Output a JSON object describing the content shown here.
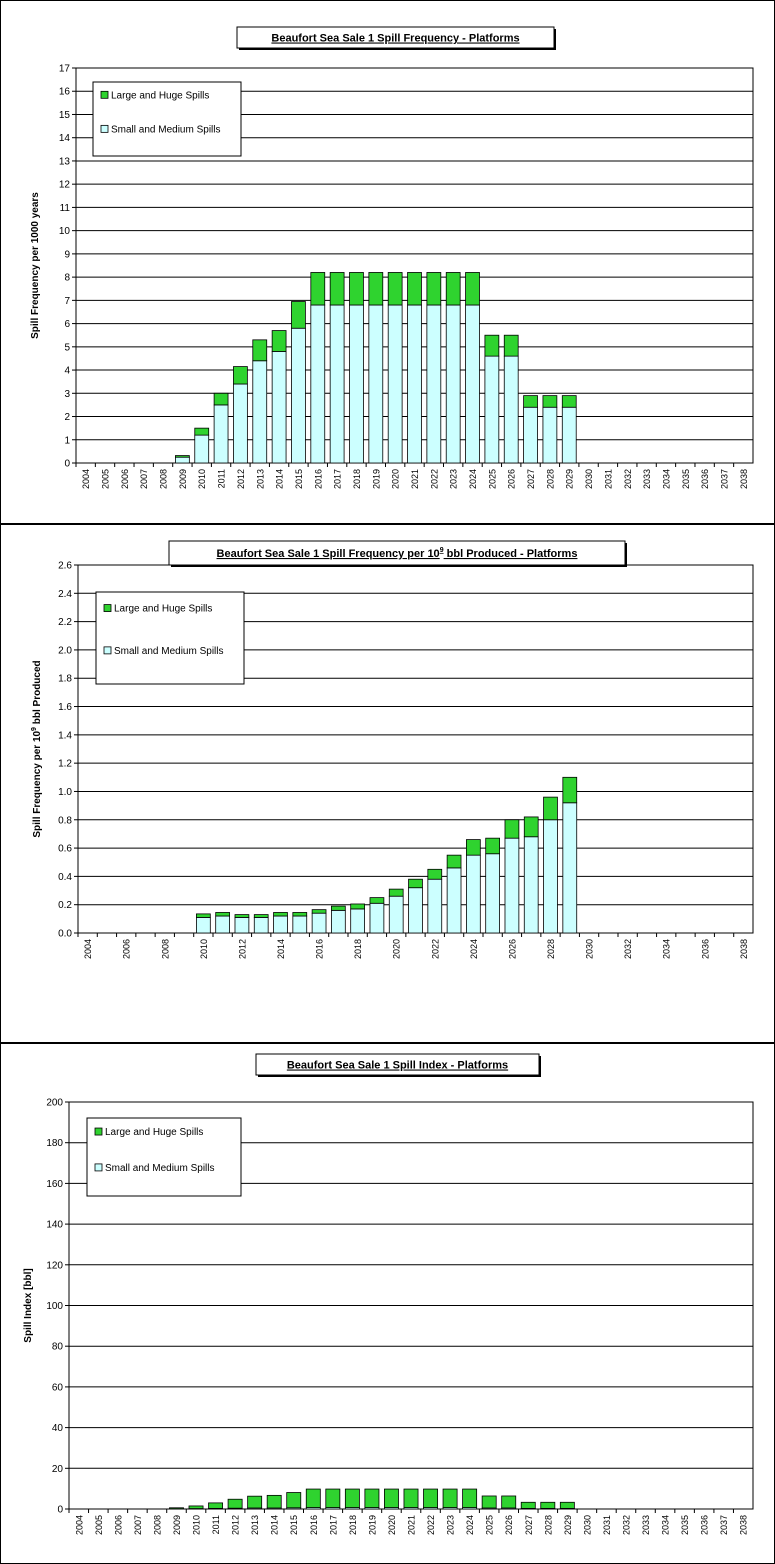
{
  "colors": {
    "large_huge": "#2fd32f",
    "small_medium": "#ccffff",
    "grid": "#000000",
    "plot_bg": "#ffffff"
  },
  "chart_data": [
    {
      "type": "bar",
      "stacked": true,
      "title": "Beaufort Sea Sale 1 Spill Frequency - Platforms",
      "ylabel": "Spill Frequency per 1000 years",
      "xlabel": "",
      "ylim": [
        0,
        17
      ],
      "ytick_step": 1,
      "ytick_decimals": 0,
      "grid": true,
      "legend_placement": "top-left",
      "x": [
        "2004",
        "2005",
        "2006",
        "2007",
        "2008",
        "2009",
        "2010",
        "2011",
        "2012",
        "2013",
        "2014",
        "2015",
        "2016",
        "2017",
        "2018",
        "2019",
        "2020",
        "2021",
        "2022",
        "2023",
        "2024",
        "2025",
        "2026",
        "2027",
        "2028",
        "2029",
        "2030",
        "2031",
        "2032",
        "2033",
        "2034",
        "2035",
        "2036",
        "2037",
        "2038"
      ],
      "xtick_labels": [
        "2004",
        "2005",
        "2006",
        "2007",
        "2008",
        "2009",
        "2010",
        "2011",
        "2012",
        "2013",
        "2014",
        "2015",
        "2016",
        "2017",
        "2018",
        "2019",
        "2020",
        "2021",
        "2022",
        "2023",
        "2024",
        "2025",
        "2026",
        "2027",
        "2028",
        "2029",
        "2030",
        "2031",
        "2032",
        "2033",
        "2034",
        "2035",
        "2036",
        "2037",
        "2038"
      ],
      "series": [
        {
          "name": "Small and Medium Spills",
          "color_key": "small_medium",
          "values": [
            0,
            0,
            0,
            0,
            0,
            0.25,
            1.2,
            2.5,
            3.4,
            4.4,
            4.8,
            5.8,
            6.8,
            6.8,
            6.8,
            6.8,
            6.8,
            6.8,
            6.8,
            6.8,
            6.8,
            4.6,
            4.6,
            2.4,
            2.4,
            2.4,
            0,
            0,
            0,
            0,
            0,
            0,
            0,
            0,
            0
          ]
        },
        {
          "name": "Large and Huge Spills",
          "color_key": "large_huge",
          "values": [
            0,
            0,
            0,
            0,
            0,
            0.07,
            0.3,
            0.5,
            0.75,
            0.9,
            0.9,
            1.15,
            1.4,
            1.4,
            1.4,
            1.4,
            1.4,
            1.4,
            1.4,
            1.4,
            1.4,
            0.9,
            0.9,
            0.5,
            0.5,
            0.5,
            0,
            0,
            0,
            0,
            0,
            0,
            0,
            0,
            0
          ]
        }
      ]
    },
    {
      "type": "bar",
      "stacked": true,
      "title": "Beaufort Sea Sale 1 Spill Frequency per 10",
      "title_sup": "9",
      "title_after": " bbl Produced - Platforms",
      "ylabel": "Spill Frequency per 10",
      "ylabel_sup": "9",
      "ylabel_after": " bbl Produced",
      "xlabel": "",
      "ylim": [
        0,
        2.6
      ],
      "ytick_step": 0.2,
      "ytick_decimals": 1,
      "grid": true,
      "legend_placement": "top-left",
      "x": [
        "2004",
        "2005",
        "2006",
        "2007",
        "2008",
        "2009",
        "2010",
        "2011",
        "2012",
        "2013",
        "2014",
        "2015",
        "2016",
        "2017",
        "2018",
        "2019",
        "2020",
        "2021",
        "2022",
        "2023",
        "2024",
        "2025",
        "2026",
        "2027",
        "2028",
        "2029",
        "2030",
        "2031",
        "2032",
        "2033",
        "2034",
        "2035",
        "2036",
        "2037",
        "2038"
      ],
      "xtick_labels": [
        "2004",
        "",
        "2006",
        "",
        "2008",
        "",
        "2010",
        "",
        "2012",
        "",
        "2014",
        "",
        "2016",
        "",
        "2018",
        "",
        "2020",
        "",
        "2022",
        "",
        "2024",
        "",
        "2026",
        "",
        "2028",
        "",
        "2030",
        "",
        "2032",
        "",
        "2034",
        "",
        "2036",
        "",
        "2038"
      ],
      "series": [
        {
          "name": "Small and Medium Spills",
          "color_key": "small_medium",
          "values": [
            0,
            0,
            0,
            0,
            0,
            0,
            0.11,
            0.12,
            0.11,
            0.11,
            0.12,
            0.12,
            0.14,
            0.16,
            0.17,
            0.21,
            0.26,
            0.32,
            0.38,
            0.46,
            0.55,
            0.56,
            0.67,
            0.68,
            0.8,
            0.92,
            0,
            0,
            0,
            0,
            0,
            0,
            0,
            0,
            0
          ]
        },
        {
          "name": "Large and Huge Spills",
          "color_key": "large_huge",
          "values": [
            0,
            0,
            0,
            0,
            0,
            0,
            0.025,
            0.025,
            0.02,
            0.02,
            0.025,
            0.025,
            0.025,
            0.03,
            0.035,
            0.04,
            0.05,
            0.06,
            0.07,
            0.09,
            0.11,
            0.11,
            0.13,
            0.14,
            0.16,
            0.18,
            0,
            0,
            0,
            0,
            0,
            0,
            0,
            0,
            0
          ]
        }
      ]
    },
    {
      "type": "bar",
      "stacked": true,
      "title": "Beaufort Sea Sale 1 Spill Index - Platforms",
      "ylabel": "Spill Index [bbl]",
      "xlabel": "",
      "ylim": [
        0,
        200
      ],
      "ytick_step": 20,
      "ytick_decimals": 0,
      "grid": true,
      "legend_placement": "top-left",
      "x": [
        "2004",
        "2005",
        "2006",
        "2007",
        "2008",
        "2009",
        "2010",
        "2011",
        "2012",
        "2013",
        "2014",
        "2015",
        "2016",
        "2017",
        "2018",
        "2019",
        "2020",
        "2021",
        "2022",
        "2023",
        "2024",
        "2025",
        "2026",
        "2027",
        "2028",
        "2029",
        "2030",
        "2031",
        "2032",
        "2033",
        "2034",
        "2035",
        "2036",
        "2037",
        "2038"
      ],
      "xtick_labels": [
        "2004",
        "2005",
        "2006",
        "2007",
        "2008",
        "2009",
        "2010",
        "2011",
        "2012",
        "2013",
        "2014",
        "2015",
        "2016",
        "2017",
        "2018",
        "2019",
        "2020",
        "2021",
        "2022",
        "2023",
        "2024",
        "2025",
        "2026",
        "2027",
        "2028",
        "2029",
        "2030",
        "2031",
        "2032",
        "2033",
        "2034",
        "2035",
        "2036",
        "2037",
        "2038"
      ],
      "series": [
        {
          "name": "Small and Medium Spills",
          "color_key": "small_medium",
          "values": [
            0,
            0,
            0,
            0,
            0,
            0.1,
            0.2,
            0.3,
            0.4,
            0.5,
            0.5,
            0.6,
            0.7,
            0.7,
            0.7,
            0.7,
            0.7,
            0.7,
            0.7,
            0.7,
            0.7,
            0.5,
            0.5,
            0.3,
            0.3,
            0.3,
            0,
            0,
            0,
            0,
            0,
            0,
            0,
            0,
            0
          ]
        },
        {
          "name": "Large and Huge Spills",
          "color_key": "large_huge",
          "values": [
            0,
            0,
            0,
            0,
            0,
            0.5,
            1.3,
            2.7,
            4.4,
            5.8,
            6.2,
            7.5,
            9.1,
            9.1,
            9.1,
            9.1,
            9.1,
            9.1,
            9.1,
            9.1,
            9.1,
            5.9,
            5.9,
            3.0,
            3.0,
            3.0,
            0,
            0,
            0,
            0,
            0,
            0,
            0,
            0,
            0
          ]
        }
      ]
    }
  ]
}
